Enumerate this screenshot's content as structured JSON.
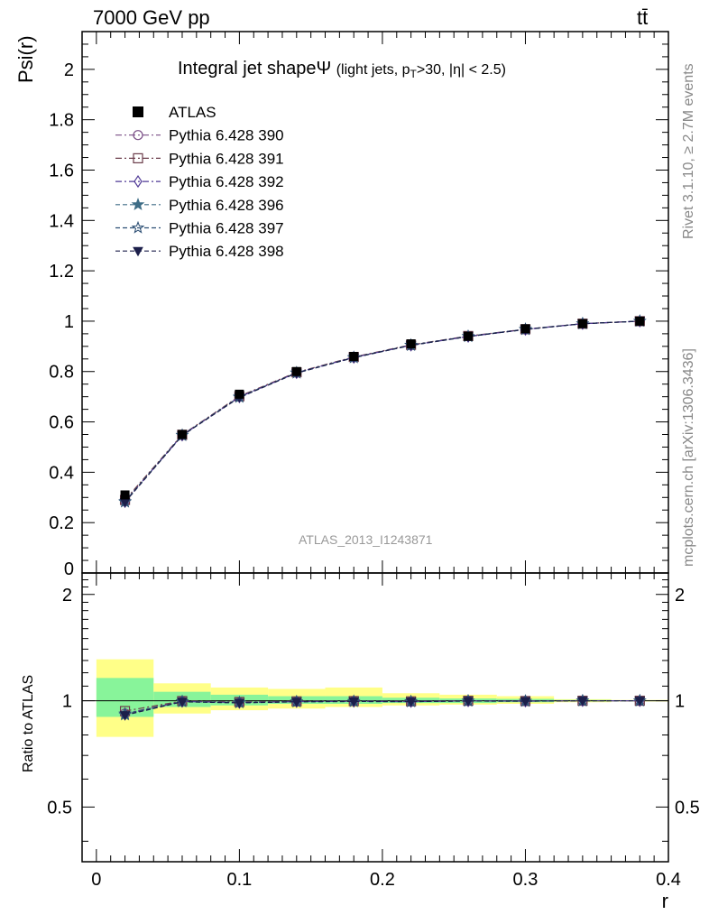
{
  "header": {
    "energy": "7000 GeV pp",
    "process": "tt̄"
  },
  "side_labels": {
    "rivet": "Rivet 3.1.10, ≥ 2.7M events",
    "mcplots": "mcplots.cern.ch [arXiv:1306.3436]"
  },
  "title": {
    "main": "Integral jet shapeΨ",
    "sub": "(light jets, p",
    "sub_T": "T",
    "sub_rest": ">30, |η| < 2.5)"
  },
  "watermark": "ATLAS_2013_I1243871",
  "colors": {
    "atlas": "#000000",
    "s390": "#7a4e86",
    "s391": "#6b3d4a",
    "s392": "#4f3896",
    "s396": "#3e6d86",
    "s397": "#2d4f74",
    "s398": "#1c1f4a",
    "band_inner": "#88f49a",
    "band_outer": "#ffff88"
  },
  "chart_data": [
    {
      "type": "line",
      "ylabel": "Psi(r)",
      "xlim": [
        -0.01,
        0.4
      ],
      "ylim": [
        0,
        2.15
      ],
      "yticks": [
        "0",
        "0.2",
        "0.4",
        "0.6",
        "0.8",
        "1",
        "1.2",
        "1.4",
        "1.6",
        "1.8",
        "2"
      ],
      "x": [
        0.02,
        0.06,
        0.1,
        0.14,
        0.18,
        0.22,
        0.26,
        0.3,
        0.34,
        0.38
      ],
      "series": [
        {
          "name": "ATLAS",
          "values": [
            0.31,
            0.55,
            0.71,
            0.8,
            0.86,
            0.91,
            0.94,
            0.97,
            0.99,
            1.0
          ]
        },
        {
          "name": "Pythia 6.428 390",
          "values": [
            0.285,
            0.548,
            0.7,
            0.796,
            0.857,
            0.905,
            0.94,
            0.968,
            0.99,
            1.0
          ]
        },
        {
          "name": "Pythia 6.428 391",
          "values": [
            0.29,
            0.549,
            0.702,
            0.797,
            0.858,
            0.906,
            0.941,
            0.968,
            0.99,
            1.0
          ]
        },
        {
          "name": "Pythia 6.428 392",
          "values": [
            0.283,
            0.547,
            0.699,
            0.795,
            0.856,
            0.904,
            0.939,
            0.967,
            0.99,
            1.0
          ]
        },
        {
          "name": "Pythia 6.428 396",
          "values": [
            0.282,
            0.546,
            0.698,
            0.794,
            0.855,
            0.904,
            0.939,
            0.967,
            0.99,
            1.0
          ]
        },
        {
          "name": "Pythia 6.428 397",
          "values": [
            0.284,
            0.547,
            0.699,
            0.795,
            0.856,
            0.905,
            0.94,
            0.968,
            0.99,
            1.0
          ]
        },
        {
          "name": "Pythia 6.428 398",
          "values": [
            0.281,
            0.546,
            0.697,
            0.794,
            0.855,
            0.904,
            0.939,
            0.967,
            0.99,
            1.0
          ]
        }
      ]
    },
    {
      "type": "line",
      "ylabel": "Ratio to ATLAS",
      "xlabel": "r",
      "xlim": [
        -0.01,
        0.4
      ],
      "ylim": [
        0.35,
        2.3
      ],
      "yticks": [
        "0.5",
        "1",
        "2"
      ],
      "xticks": [
        "0",
        "0.1",
        "0.2",
        "0.3",
        "0.4"
      ],
      "bins": [
        [
          0,
          0.04
        ],
        [
          0.04,
          0.08
        ],
        [
          0.08,
          0.12
        ],
        [
          0.12,
          0.16
        ],
        [
          0.16,
          0.2
        ],
        [
          0.2,
          0.24
        ],
        [
          0.24,
          0.28
        ],
        [
          0.28,
          0.32
        ],
        [
          0.32,
          0.36
        ],
        [
          0.36,
          0.4
        ]
      ],
      "band_inner": [
        [
          0.9,
          1.16
        ],
        [
          0.96,
          1.06
        ],
        [
          0.97,
          1.04
        ],
        [
          0.98,
          1.03
        ],
        [
          0.98,
          1.03
        ],
        [
          0.985,
          1.02
        ],
        [
          0.985,
          1.015
        ],
        [
          0.99,
          1.012
        ],
        [
          0.995,
          1.005
        ],
        [
          0.998,
          1.002
        ]
      ],
      "band_outer": [
        [
          0.79,
          1.31
        ],
        [
          0.92,
          1.12
        ],
        [
          0.94,
          1.09
        ],
        [
          0.95,
          1.08
        ],
        [
          0.96,
          1.09
        ],
        [
          0.97,
          1.05
        ],
        [
          0.975,
          1.04
        ],
        [
          0.98,
          1.03
        ],
        [
          0.99,
          1.01
        ],
        [
          0.995,
          1.005
        ]
      ],
      "x": [
        0.02,
        0.06,
        0.1,
        0.14,
        0.18,
        0.22,
        0.26,
        0.3,
        0.34,
        0.38
      ],
      "series": [
        {
          "name": "Pythia 6.428 390",
          "values": [
            0.92,
            0.997,
            0.99,
            0.995,
            0.997,
            0.995,
            0.999,
            0.998,
            1.0,
            1.0
          ]
        },
        {
          "name": "Pythia 6.428 391",
          "values": [
            0.935,
            0.998,
            0.992,
            0.996,
            0.998,
            0.996,
            1.0,
            0.998,
            1.0,
            1.0
          ]
        },
        {
          "name": "Pythia 6.428 392",
          "values": [
            0.915,
            0.995,
            0.988,
            0.994,
            0.996,
            0.994,
            0.999,
            0.997,
            1.0,
            1.0
          ]
        },
        {
          "name": "Pythia 6.428 396",
          "values": [
            0.912,
            0.994,
            0.987,
            0.993,
            0.995,
            0.994,
            0.998,
            0.997,
            1.0,
            1.0
          ]
        },
        {
          "name": "Pythia 6.428 397",
          "values": [
            0.918,
            0.995,
            0.988,
            0.994,
            0.996,
            0.995,
            0.999,
            0.998,
            1.0,
            1.0
          ]
        },
        {
          "name": "Pythia 6.428 398",
          "values": [
            0.91,
            0.993,
            0.986,
            0.993,
            0.995,
            0.994,
            0.998,
            0.997,
            1.0,
            1.0
          ]
        }
      ]
    }
  ]
}
